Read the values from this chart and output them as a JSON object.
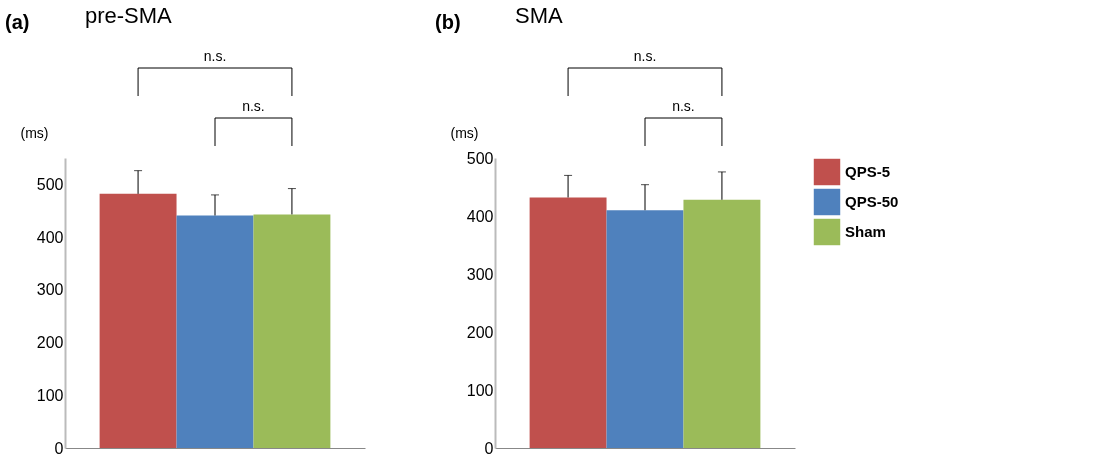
{
  "chart_data": [
    {
      "type": "bar",
      "title": "pre-SMA",
      "ylabel": "(ms)",
      "categories": [
        null
      ],
      "series": [
        {
          "name": "QPS-5",
          "color": "#c0504d",
          "values": [
            482
          ],
          "errors": [
            [
              482,
              526
            ]
          ]
        },
        {
          "name": "QPS-50",
          "color": "#4f81bd",
          "values": [
            441
          ],
          "errors": [
            [
              441,
              480
            ]
          ]
        },
        {
          "name": "Sham",
          "color": "#9bbb59",
          "values": [
            443
          ],
          "errors": [
            [
              443,
              492
            ]
          ]
        }
      ],
      "ylim": [
        0,
        550
      ],
      "yticks": [
        0,
        100,
        200,
        300,
        400,
        500
      ],
      "grid": false,
      "legend": "right",
      "annotations": [
        "(a)",
        "n.s.",
        "n.s."
      ]
    },
    {
      "type": "bar",
      "title": "SMA",
      "ylabel": "(ms)",
      "categories": [
        null
      ],
      "series": [
        {
          "name": "QPS-5",
          "color": "#c0504d",
          "values": [
            432
          ],
          "errors": [
            [
              432,
              470
            ]
          ]
        },
        {
          "name": "QPS-50",
          "color": "#4f81bd",
          "values": [
            410
          ],
          "errors": [
            [
              410,
              454
            ]
          ]
        },
        {
          "name": "Sham",
          "color": "#9bbb59",
          "values": [
            428
          ],
          "errors": [
            [
              428,
              476
            ]
          ]
        }
      ],
      "ylim": [
        0,
        500
      ],
      "yticks": [
        0,
        100,
        200,
        300,
        400,
        500
      ],
      "grid": false,
      "legend": "right",
      "annotations": [
        "(b)",
        "n.s.",
        "n.s."
      ]
    }
  ]
}
